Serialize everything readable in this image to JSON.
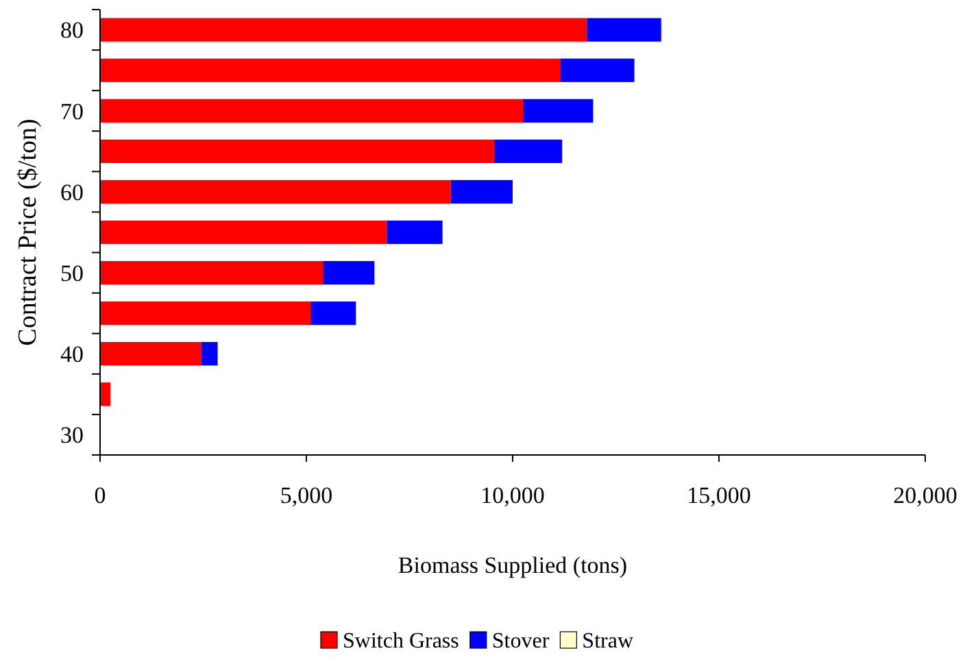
{
  "chart_data": {
    "type": "bar",
    "orientation": "horizontal",
    "stacked": true,
    "xlabel": "Biomass Supplied (tons)",
    "ylabel": "Contract Price ($/ton)",
    "categories": [
      "80",
      null,
      "70",
      null,
      "60",
      null,
      "50",
      null,
      "40",
      null,
      "30"
    ],
    "series": [
      {
        "name": "Switch Grass",
        "color": "#ff0000",
        "values": [
          11800,
          11150,
          10250,
          9550,
          8500,
          6950,
          5400,
          5100,
          2450,
          250,
          0
        ]
      },
      {
        "name": "Stover",
        "color": "#0000ff",
        "values": [
          1800,
          1800,
          1700,
          1650,
          1500,
          1350,
          1250,
          1100,
          400,
          0,
          0
        ]
      },
      {
        "name": "Straw",
        "color": "#ffffcc",
        "values": [
          0,
          0,
          0,
          0,
          0,
          0,
          0,
          0,
          0,
          0,
          0
        ]
      }
    ],
    "xlim": [
      0,
      20000
    ],
    "xticks": [
      {
        "value": 0,
        "label": "0"
      },
      {
        "value": 5000,
        "label": "5,000"
      },
      {
        "value": 10000,
        "label": "10,000"
      },
      {
        "value": 15000,
        "label": "15,000"
      },
      {
        "value": 20000,
        "label": "20,000"
      }
    ],
    "grid": false,
    "legend": "bottom"
  }
}
